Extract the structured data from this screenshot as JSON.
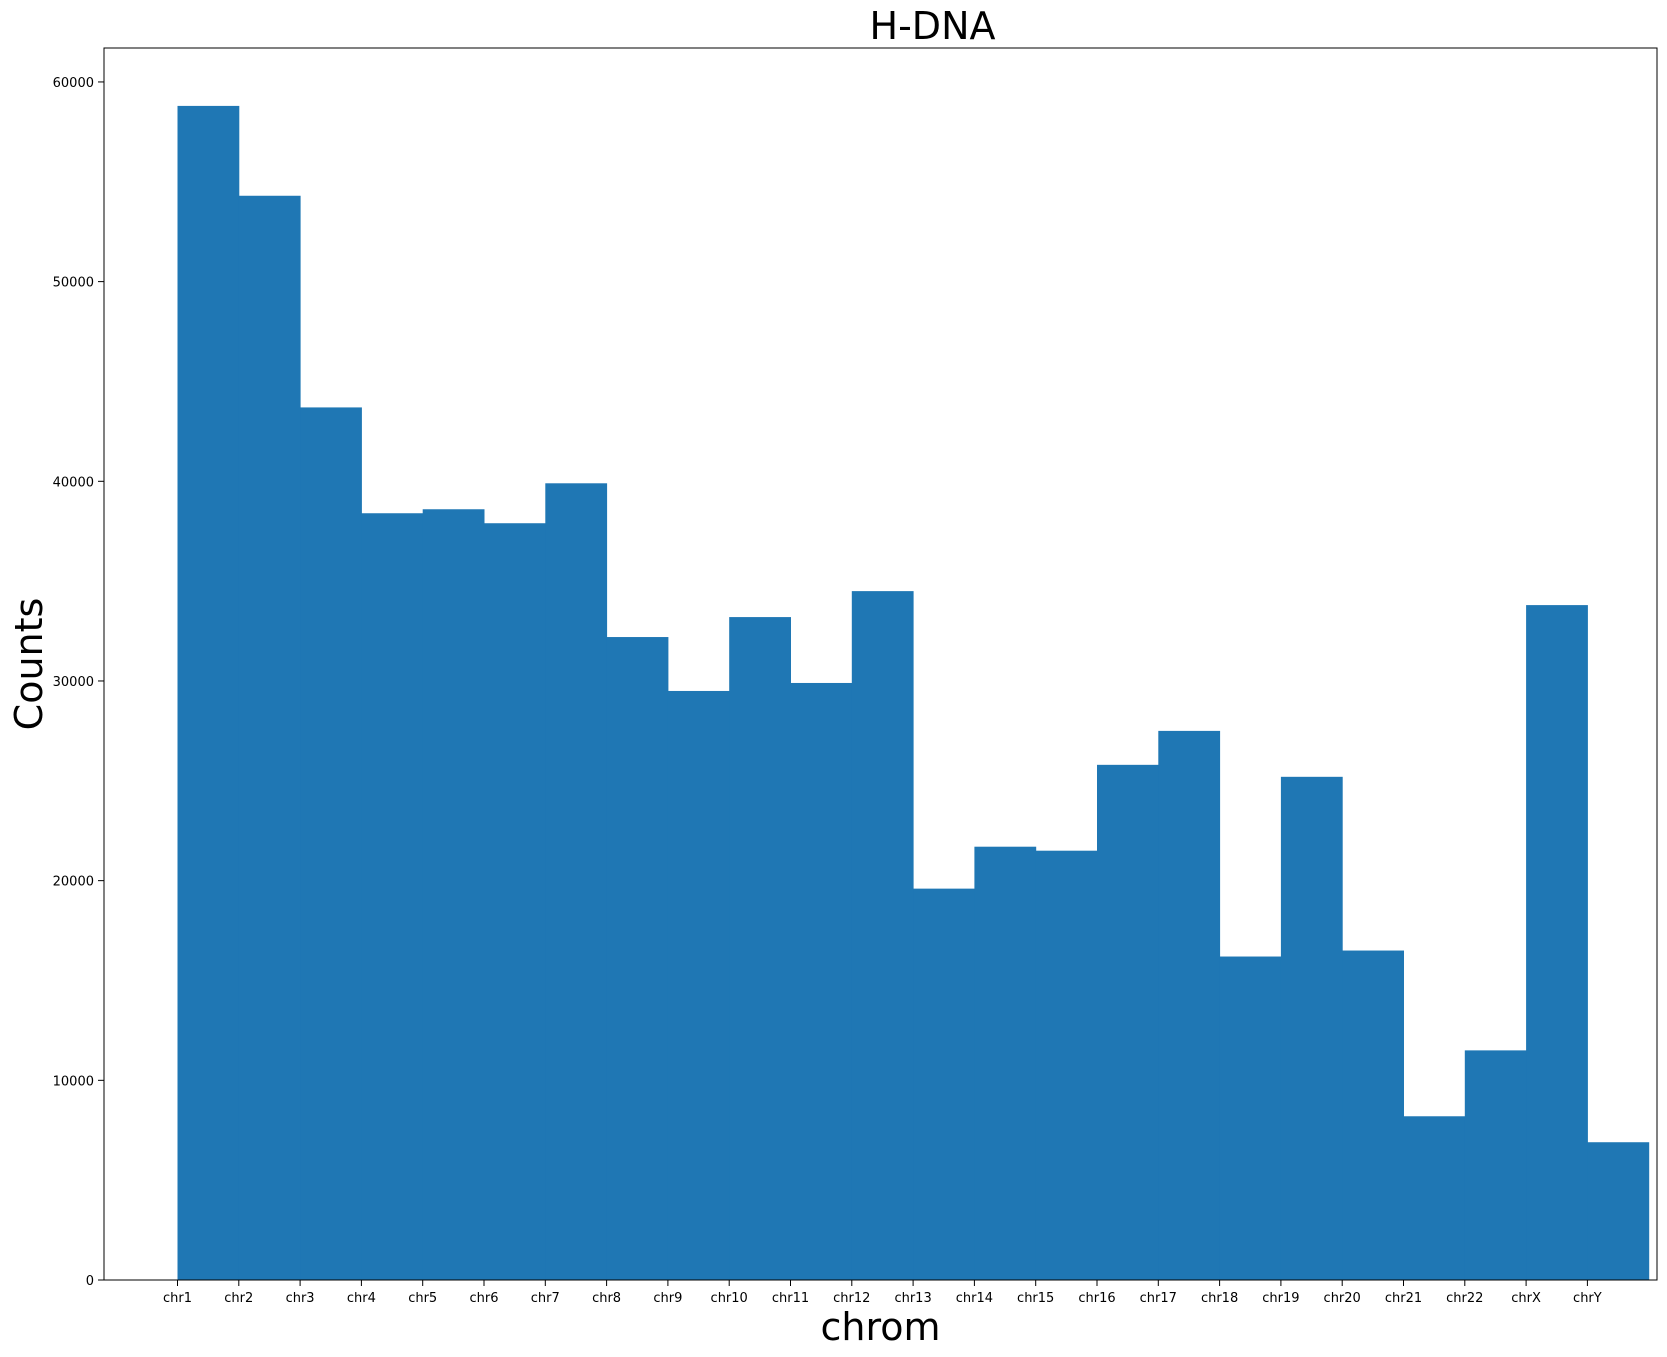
{
  "chart_data": {
    "type": "bar",
    "title": "H-DNA",
    "xlabel": "chrom",
    "ylabel": "Counts",
    "categories": [
      "chr1",
      "chr2",
      "chr3",
      "chr4",
      "chr5",
      "chr6",
      "chr7",
      "chr8",
      "chr9",
      "chr10",
      "chr11",
      "chr12",
      "chr13",
      "chr14",
      "chr15",
      "chr16",
      "chr17",
      "chr18",
      "chr19",
      "chr20",
      "chr21",
      "chr22",
      "chrX",
      "chrY"
    ],
    "x_tick_labels": [
      "chr1",
      "chr2",
      "chr3",
      "chr4",
      "chr5",
      "chr6",
      "chr7",
      "chr8",
      "chr9",
      "chr10",
      "chr11",
      "chr12",
      "chr13",
      "chr14",
      "chr15",
      "chr16",
      "chr17",
      "chr18",
      "chr19",
      "chr20",
      "chr21",
      "chr22",
      "chrX",
      "chrY"
    ],
    "values": [
      58800,
      54300,
      43700,
      38400,
      38600,
      37900,
      39900,
      32200,
      29500,
      33200,
      29900,
      34500,
      19600,
      21700,
      21500,
      25800,
      27500,
      16200,
      25200,
      16500,
      8200,
      11500,
      33800,
      6900
    ],
    "ylim": [
      0,
      61700
    ],
    "yticks": [
      0,
      10000,
      20000,
      30000,
      40000,
      50000,
      60000
    ],
    "ytick_labels": [
      "0",
      "10000",
      "20000",
      "30000",
      "40000",
      "50000",
      "60000"
    ],
    "bar_color": "#1f77b4",
    "grid": false,
    "legend": "none"
  }
}
